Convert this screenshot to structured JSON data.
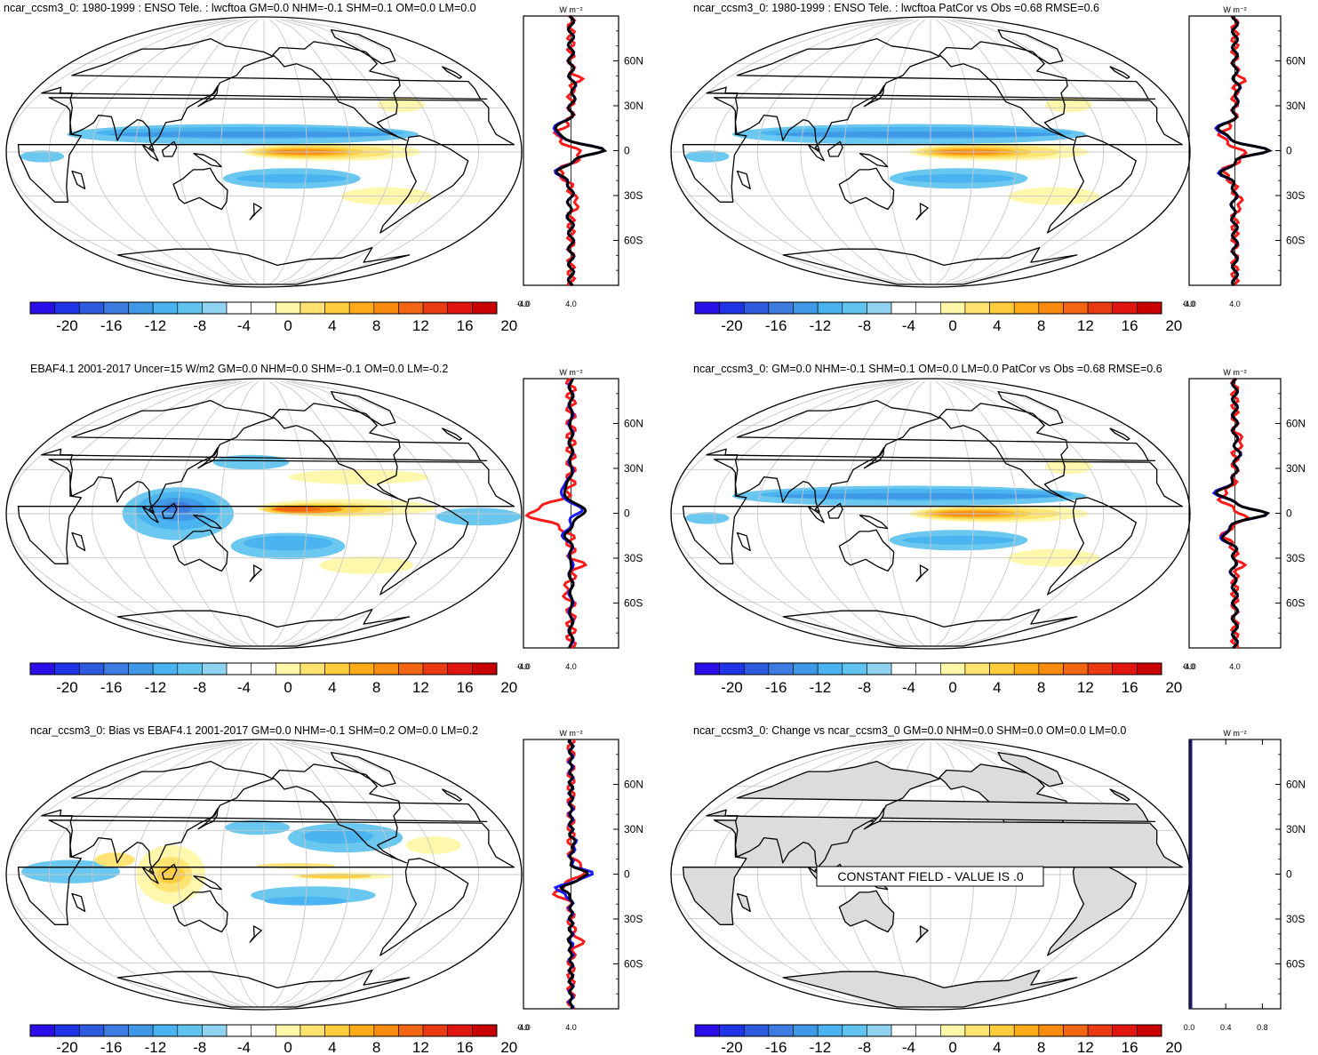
{
  "figure": {
    "background": "#ffffff"
  },
  "palette": [
    "#2a0ee8",
    "#1f34e6",
    "#2e5ade",
    "#3d7be1",
    "#3f98e6",
    "#48b3ee",
    "#61c4ef",
    "#8fd3f0",
    "#ffffff",
    "#ffffff",
    "#fff7a8",
    "#ffe270",
    "#ffcd3c",
    "#ffab1a",
    "#f98a10",
    "#f26512",
    "#ea3a11",
    "#e01510",
    "#c80000"
  ],
  "colors": {
    "model": "#1a1aff",
    "obs": "#ff1a1a",
    "diff": "#000000",
    "land_constant": "#dcdcdc",
    "grid": "#c8c8c8"
  },
  "colorbar": {
    "labels": [
      "-20",
      "-16",
      "-12",
      "-8",
      "-4",
      "0",
      "4",
      "8",
      "12",
      "16",
      "20"
    ]
  },
  "latitude_labels": [
    "60N",
    "30N",
    "0",
    "30S",
    "60S"
  ],
  "unit_label": "W m⁻²",
  "chart_data": [
    {
      "id": "model",
      "type": "heatmap",
      "title": "ncar_ccsm3_0: 1980-1999 : ENSO Tele. : lwcftoa GM=0.0 NHM=-0.1 SHM=0.1 OM=0.0 LM=0.0",
      "zonal": {
        "xticks": [
          "-4.0",
          "0.0",
          "4.0"
        ],
        "xlim": [
          -4,
          4
        ],
        "ylim": [
          -90,
          90
        ]
      }
    },
    {
      "id": "model_pattern",
      "type": "heatmap",
      "title": "ncar_ccsm3_0: 1980-1999 : ENSO Tele. : lwcftoa PatCor vs Obs =0.68 RMSE=0.6",
      "zonal": {
        "xticks": [
          "-4.0",
          "0.0",
          "4.0"
        ],
        "xlim": [
          -4,
          4
        ],
        "ylim": [
          -90,
          90
        ]
      }
    },
    {
      "id": "obs",
      "type": "heatmap",
      "title": "EBAF4.1 2001-2017 Uncer=15 W/m2 GM=0.0 NHM=0.0 SHM=-0.1 OM=0.0 LM=-0.2",
      "zonal": {
        "xticks": [
          "-4.0",
          "0.0",
          "4.0"
        ],
        "xlim": [
          -4,
          4
        ],
        "ylim": [
          -90,
          90
        ]
      }
    },
    {
      "id": "model_stats",
      "type": "heatmap",
      "title": "ncar_ccsm3_0: GM=0.0 NHM=-0.1 SHM=0.1 OM=0.0 LM=0.0 PatCor vs Obs =0.68 RMSE=0.6",
      "zonal": {
        "xticks": [
          "-4.0",
          "0.0",
          "4.0"
        ],
        "xlim": [
          -4,
          4
        ],
        "ylim": [
          -90,
          90
        ]
      }
    },
    {
      "id": "bias",
      "type": "heatmap",
      "title": "ncar_ccsm3_0: Bias vs EBAF4.1 2001-2017 GM=0.0 NHM=-0.1 SHM=0.2 OM=0.0 LM=0.2",
      "zonal": {
        "xticks": [
          "-4.0",
          "0.0",
          "4.0"
        ],
        "xlim": [
          -4,
          4
        ],
        "ylim": [
          -90,
          90
        ]
      }
    },
    {
      "id": "change",
      "type": "heatmap",
      "title": "ncar_ccsm3_0: Change vs ncar_ccsm3_0 GM=0.0 NHM=0.0 SHM=0.0 OM=0.0 LM=0.0",
      "constant_message": "CONSTANT FIELD - VALUE IS .0",
      "zonal": {
        "xticks": [
          "0.0",
          "0.4",
          "0.8"
        ],
        "xlim": [
          0,
          1
        ],
        "ylim": [
          -90,
          90
        ]
      }
    }
  ]
}
